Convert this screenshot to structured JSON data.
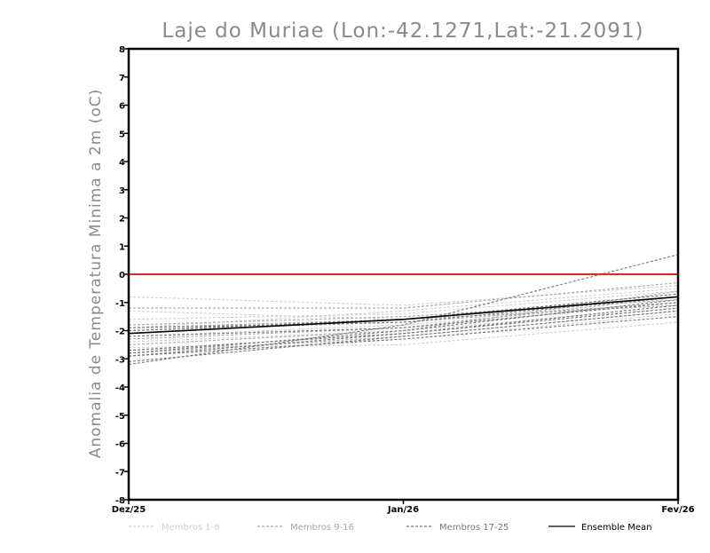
{
  "chart_data": {
    "type": "line",
    "title": "Laje do Muriae (Lon:-42.1271,Lat:-21.2091)",
    "xlabel": "",
    "ylabel": "Anomalia de Temperatura Minima a 2m (oC)",
    "categories": [
      "Dez/25",
      "Jan/26",
      "Fev/26"
    ],
    "ylim": [
      -8,
      8
    ],
    "yticks": [
      "-8",
      "-7",
      "-6",
      "-5",
      "-4",
      "-3",
      "-2",
      "-1",
      "0",
      "1",
      "2",
      "3",
      "4",
      "5",
      "6",
      "7",
      "8"
    ],
    "reference_line": {
      "value": 0,
      "color": "#ee2222"
    },
    "grid": false,
    "groups": [
      {
        "name": "Membros 1-8",
        "color": "#cfcfcf",
        "dash": "3,2",
        "series": [
          [
            -0.8,
            -1.1,
            -0.4
          ],
          [
            -1.3,
            -1.6,
            -0.7
          ],
          [
            -2.6,
            -2.5,
            -1.7
          ],
          [
            -1.9,
            -1.3,
            -0.5
          ],
          [
            -2.2,
            -1.8,
            -1.0
          ],
          [
            -2.7,
            -2.3,
            -1.4
          ],
          [
            -1.6,
            -1.4,
            -0.6
          ],
          [
            -2.4,
            -2.0,
            -1.2
          ]
        ]
      },
      {
        "name": "Membros 9-16",
        "color": "#a8a8a8",
        "dash": "3,2",
        "series": [
          [
            -1.8,
            -1.5,
            -0.9
          ],
          [
            -2.0,
            -1.7,
            -1.0
          ],
          [
            -1.2,
            -1.2,
            -0.3
          ],
          [
            -2.8,
            -2.2,
            -1.3
          ],
          [
            -2.3,
            -1.9,
            -0.8
          ],
          [
            -1.9,
            -1.6,
            -1.1
          ],
          [
            -2.5,
            -2.0,
            -0.6
          ],
          [
            -2.1,
            -1.6,
            -0.7
          ]
        ]
      },
      {
        "name": "Membros 17-25",
        "color": "#777777",
        "dash": "3,2",
        "series": [
          [
            -3.2,
            -1.8,
            0.7
          ],
          [
            -2.9,
            -2.1,
            -1.2
          ],
          [
            -2.8,
            -2.0,
            -0.9
          ],
          [
            -1.9,
            -1.7,
            -0.8
          ],
          [
            -2.9,
            -2.3,
            -1.5
          ],
          [
            -2.2,
            -1.9,
            -1.0
          ],
          [
            -2.7,
            -2.1,
            -1.1
          ],
          [
            -2.0,
            -1.6,
            -0.7
          ],
          [
            -3.1,
            -2.2,
            -1.3
          ]
        ]
      }
    ],
    "ensemble_mean": {
      "name": "Ensemble Mean",
      "color": "#000000",
      "values": [
        -2.1,
        -1.6,
        -0.8
      ]
    },
    "legend": {
      "placement": "bottom",
      "entries": [
        "Membros 1-8",
        "Membros 9-16",
        "Membros 17-25",
        "Ensemble Mean"
      ]
    }
  }
}
